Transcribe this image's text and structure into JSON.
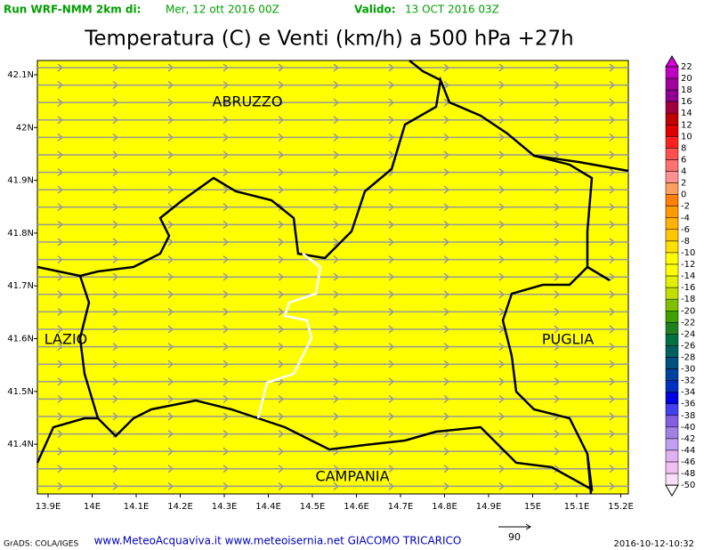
{
  "header": {
    "run": "Run WRF-NMM 2km di:",
    "run_date": "Mer, 12 ott 2016 00Z",
    "valid_label": "Valido:",
    "valid_date": "13 OCT 2016 03Z"
  },
  "title": "Temperatura (C) e Venti (km/h) a 500 hPa +27h",
  "map": {
    "lat_labels": [
      "42.1N",
      "42N",
      "41.9N",
      "41.8N",
      "41.7N",
      "41.6N",
      "41.5N",
      "41.4N"
    ],
    "lon_labels": [
      "13.9E",
      "14E",
      "14.1E",
      "14.2E",
      "14.3E",
      "14.4E",
      "14.5E",
      "14.6E",
      "14.7E",
      "14.8E",
      "14.9E",
      "15E",
      "15.1E",
      "15.2E"
    ],
    "regions": [
      "ABRUZZO",
      "LAZIO",
      "PUGLIA",
      "CAMPANIA"
    ]
  },
  "colorbar": {
    "labels": [
      "22",
      "20",
      "18",
      "16",
      "14",
      "12",
      "10",
      "8",
      "6",
      "4",
      "2",
      "0",
      "-2",
      "-4",
      "-6",
      "-8",
      "-10",
      "-12",
      "-14",
      "-16",
      "-18",
      "-20",
      "-22",
      "-24",
      "-26",
      "-28",
      "-30",
      "-32",
      "-34",
      "-36",
      "-38",
      "-40",
      "-42",
      "-44",
      "-46",
      "-48",
      "-50"
    ]
  },
  "footer": {
    "credit": "GrADS: COLA/IGES",
    "sites": "www.MeteoAcquaviva.it www.meteoisernia.net GIACOMO TRICARICO",
    "vector_ref": "90",
    "timestamp": "2016-10-12-10:32"
  }
}
